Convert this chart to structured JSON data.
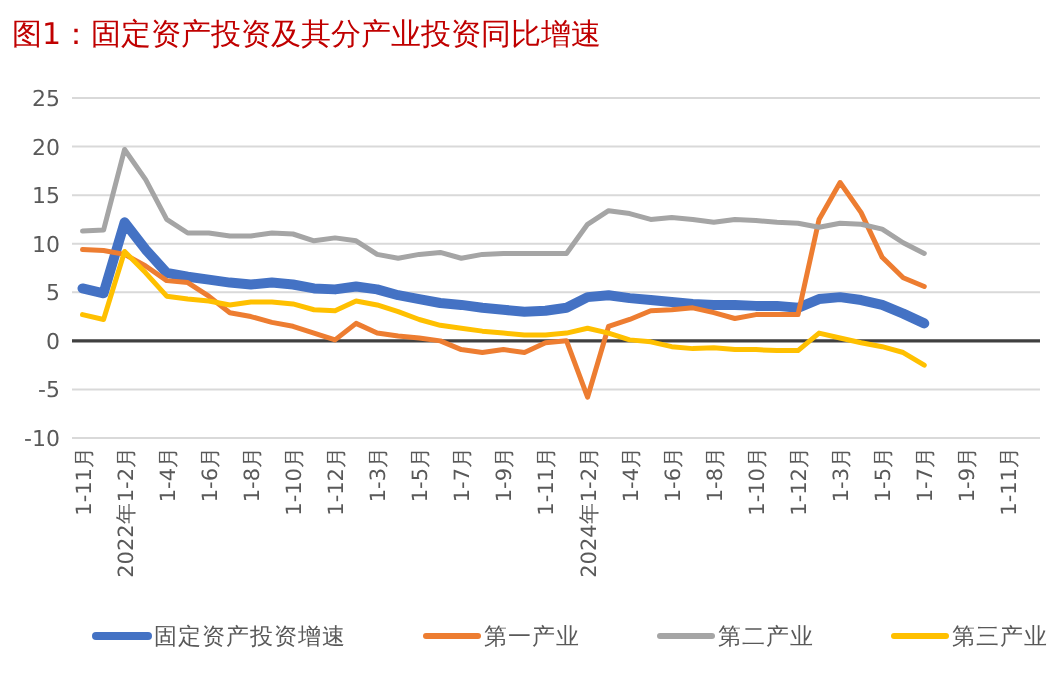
{
  "chart_data": {
    "type": "line",
    "title": "图1：固定资产投资及其分产业投资同比增速",
    "categories": [
      "1-11月",
      null,
      "2022年1-2月",
      null,
      "1-4月",
      null,
      "1-6月",
      null,
      "1-8月",
      null,
      "1-10月",
      null,
      "1-12月",
      null,
      "1-3月",
      null,
      "1-5月",
      null,
      "1-7月",
      null,
      "1-9月",
      null,
      "1-11月",
      null,
      "2024年1-2月",
      null,
      "1-4月",
      null,
      "1-6月",
      null,
      "1-8月",
      null,
      "1-10月",
      null,
      "1-12月",
      null,
      "1-3月",
      null,
      "1-5月",
      null,
      "1-7月",
      null,
      "1-9月",
      null,
      "1-11月",
      null
    ],
    "series": [
      {
        "name": "固定资产投资增速",
        "color": "#4472c4",
        "values": [
          5.4,
          4.9,
          12.2,
          9.4,
          7.0,
          6.6,
          6.3,
          6.0,
          5.8,
          6.0,
          5.8,
          5.4,
          5.3,
          5.6,
          5.3,
          4.7,
          4.3,
          3.9,
          3.7,
          3.4,
          3.2,
          3.0,
          3.1,
          3.4,
          4.5,
          4.7,
          4.4,
          4.2,
          4.0,
          3.8,
          3.7,
          3.7,
          3.6,
          3.6,
          3.4,
          4.3,
          4.5,
          4.2,
          3.7,
          2.8,
          1.8,
          null,
          null,
          null,
          null,
          null
        ]
      },
      {
        "name": "第一产业",
        "color": "#ed7d31",
        "values": [
          9.4,
          9.3,
          8.9,
          7.7,
          6.2,
          6.0,
          4.6,
          2.9,
          2.5,
          1.9,
          1.5,
          0.8,
          0.1,
          1.8,
          0.8,
          0.5,
          0.3,
          0.0,
          -0.9,
          -1.2,
          -0.9,
          -1.2,
          -0.2,
          0.0,
          -5.8,
          1.5,
          2.2,
          3.1,
          3.2,
          3.4,
          2.9,
          2.3,
          2.7,
          2.7,
          2.7,
          12.5,
          16.3,
          13.2,
          8.6,
          6.5,
          5.6,
          null,
          null,
          null,
          null,
          null
        ]
      },
      {
        "name": "第二产业",
        "color": "#a5a5a5",
        "values": [
          11.3,
          11.4,
          19.7,
          16.6,
          12.5,
          11.1,
          11.1,
          10.8,
          10.8,
          11.1,
          11.0,
          10.3,
          10.6,
          10.3,
          8.9,
          8.5,
          8.9,
          9.1,
          8.5,
          8.9,
          9.0,
          9.0,
          9.0,
          9.0,
          12.0,
          13.4,
          13.1,
          12.5,
          12.7,
          12.5,
          12.2,
          12.5,
          12.4,
          12.2,
          12.1,
          11.7,
          12.1,
          12.0,
          11.5,
          10.1,
          9.0,
          null,
          null,
          null,
          null,
          null
        ]
      },
      {
        "name": "第三产业",
        "color": "#ffc000",
        "values": [
          2.7,
          2.2,
          9.2,
          7.0,
          4.6,
          4.3,
          4.1,
          3.7,
          4.0,
          4.0,
          3.8,
          3.2,
          3.1,
          4.1,
          3.7,
          3.0,
          2.2,
          1.6,
          1.3,
          1.0,
          0.8,
          0.6,
          0.6,
          0.8,
          1.3,
          0.8,
          0.1,
          -0.1,
          -0.6,
          -0.8,
          -0.7,
          -0.9,
          -0.9,
          -1.0,
          -1.0,
          0.8,
          0.3,
          -0.2,
          -0.6,
          -1.2,
          -2.5,
          null,
          null,
          null,
          null,
          null
        ]
      }
    ],
    "ylim": [
      -10,
      25
    ],
    "yticks": [
      -10,
      -5,
      0,
      5,
      10,
      15,
      20,
      25
    ],
    "grid": "y",
    "legend": "bottom"
  }
}
